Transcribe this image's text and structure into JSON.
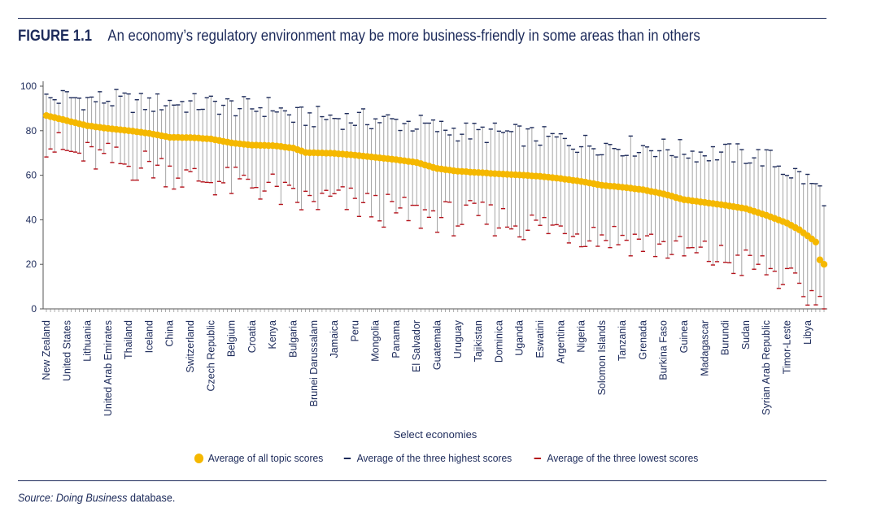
{
  "figure": {
    "label": "FIGURE 1.1",
    "title": "An economy’s regulatory environment may be more business-friendly in some areas than in others"
  },
  "source": {
    "prefix": "Source: ",
    "name": "Doing Business",
    "suffix": " database."
  },
  "colors": {
    "average": "#f5b800",
    "highest": "#1c2a5a",
    "lowest": "#b5121b",
    "whisker": "#9a9a9a",
    "text": "#1c2a5a"
  },
  "chart_data": {
    "type": "scatter",
    "xlabel": "Select economies",
    "ylabel": "",
    "ylim": [
      0,
      100
    ],
    "yticks": [
      0,
      20,
      40,
      60,
      80,
      100
    ],
    "n_economies": 190,
    "x_tick_labels": [
      "New Zealand",
      "United States",
      "Lithuania",
      "United Arab Emirates",
      "Thailand",
      "Iceland",
      "China",
      "Switzerland",
      "Czech Republic",
      "Belgium",
      "Croatia",
      "Kenya",
      "Bulgaria",
      "Brunei Darussalam",
      "Jamaica",
      "Peru",
      "Mongolia",
      "Panama",
      "El Salvador",
      "Guatemala",
      "Uruguay",
      "Tajikistan",
      "Dominica",
      "Uganda",
      "Eswatini",
      "Argentina",
      "Nigeria",
      "Solomon Islands",
      "Tanzania",
      "Grenada",
      "Burkina Faso",
      "Guinea",
      "Madagascar",
      "Burundi",
      "Sudan",
      "Syrian Arab Republic",
      "Timor-Leste",
      "Libya"
    ],
    "x_tick_positions": [
      1,
      6,
      11,
      16,
      21,
      26,
      31,
      36,
      41,
      46,
      51,
      56,
      61,
      66,
      71,
      76,
      81,
      86,
      91,
      96,
      101,
      106,
      111,
      116,
      121,
      126,
      131,
      136,
      141,
      146,
      151,
      156,
      161,
      166,
      171,
      176,
      181,
      186
    ],
    "legend": [
      "Average of all topic scores",
      "Average of the three highest scores",
      "Average of the three lowest scores"
    ],
    "legend_position": "bottom",
    "anchors_average": [
      [
        1,
        86.8
      ],
      [
        6,
        84.5
      ],
      [
        11,
        82.2
      ],
      [
        16,
        81.0
      ],
      [
        21,
        80.0
      ],
      [
        26,
        78.8
      ],
      [
        31,
        77.0
      ],
      [
        36,
        76.9
      ],
      [
        41,
        76.3
      ],
      [
        46,
        74.5
      ],
      [
        51,
        73.5
      ],
      [
        56,
        73.3
      ],
      [
        61,
        72.2
      ],
      [
        64,
        70.2
      ],
      [
        71,
        69.8
      ],
      [
        76,
        69.0
      ],
      [
        81,
        68.0
      ],
      [
        86,
        67.0
      ],
      [
        91,
        65.7
      ],
      [
        96,
        63.0
      ],
      [
        101,
        61.8
      ],
      [
        106,
        61.2
      ],
      [
        111,
        60.6
      ],
      [
        116,
        60.1
      ],
      [
        121,
        59.5
      ],
      [
        126,
        58.5
      ],
      [
        131,
        57.2
      ],
      [
        136,
        55.5
      ],
      [
        141,
        54.6
      ],
      [
        146,
        53.5
      ],
      [
        151,
        51.6
      ],
      [
        156,
        49.0
      ],
      [
        161,
        47.8
      ],
      [
        166,
        46.5
      ],
      [
        171,
        45.0
      ],
      [
        176,
        42.0
      ],
      [
        181,
        38.5
      ],
      [
        184,
        35.5
      ],
      [
        188,
        30.0
      ],
      [
        189,
        22.0
      ],
      [
        190,
        20.0
      ]
    ],
    "anchors_highest": [
      [
        1,
        94
      ],
      [
        6,
        95
      ],
      [
        11,
        94
      ],
      [
        16,
        94
      ],
      [
        21,
        93
      ],
      [
        26,
        92
      ],
      [
        31,
        93
      ],
      [
        36,
        92
      ],
      [
        41,
        92
      ],
      [
        46,
        91
      ],
      [
        51,
        90
      ],
      [
        56,
        91
      ],
      [
        61,
        86
      ],
      [
        66,
        86
      ],
      [
        71,
        86
      ],
      [
        76,
        85
      ],
      [
        81,
        85
      ],
      [
        86,
        84
      ],
      [
        91,
        83
      ],
      [
        96,
        81
      ],
      [
        101,
        80
      ],
      [
        106,
        79
      ],
      [
        111,
        79
      ],
      [
        116,
        78
      ],
      [
        121,
        77
      ],
      [
        126,
        76
      ],
      [
        131,
        74
      ],
      [
        136,
        74
      ],
      [
        141,
        73
      ],
      [
        146,
        73
      ],
      [
        151,
        72
      ],
      [
        156,
        71
      ],
      [
        161,
        70
      ],
      [
        166,
        70
      ],
      [
        171,
        69
      ],
      [
        176,
        68
      ],
      [
        181,
        62
      ],
      [
        184,
        60
      ],
      [
        188,
        55
      ],
      [
        190,
        51
      ]
    ],
    "anchors_lowest": [
      [
        1,
        75
      ],
      [
        6,
        70
      ],
      [
        11,
        68
      ],
      [
        16,
        67
      ],
      [
        21,
        64
      ],
      [
        26,
        65
      ],
      [
        31,
        62
      ],
      [
        36,
        58
      ],
      [
        41,
        58
      ],
      [
        46,
        56
      ],
      [
        51,
        56
      ],
      [
        56,
        54
      ],
      [
        61,
        48
      ],
      [
        66,
        48
      ],
      [
        71,
        49
      ],
      [
        76,
        47
      ],
      [
        81,
        45
      ],
      [
        86,
        43
      ],
      [
        91,
        42
      ],
      [
        96,
        42
      ],
      [
        101,
        40
      ],
      [
        106,
        41
      ],
      [
        111,
        40
      ],
      [
        116,
        38
      ],
      [
        121,
        37
      ],
      [
        126,
        36
      ],
      [
        131,
        35
      ],
      [
        136,
        33
      ],
      [
        141,
        32
      ],
      [
        146,
        30
      ],
      [
        151,
        28
      ],
      [
        156,
        25
      ],
      [
        161,
        24
      ],
      [
        166,
        22
      ],
      [
        171,
        20
      ],
      [
        176,
        18
      ],
      [
        181,
        12
      ],
      [
        184,
        8
      ],
      [
        188,
        5
      ],
      [
        190,
        0
      ]
    ]
  }
}
